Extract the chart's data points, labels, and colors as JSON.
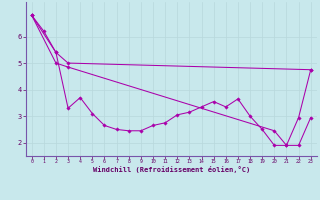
{
  "background_color": "#c8e8ec",
  "grid_color": "#aacccc",
  "line_color": "#aa00aa",
  "xlim": [
    -0.5,
    23.5
  ],
  "ylim": [
    1.5,
    7.3
  ],
  "xtick_labels": [
    "0",
    "1",
    "2",
    "3",
    "4",
    "5",
    "6",
    "7",
    "8",
    "9",
    "10",
    "11",
    "12",
    "13",
    "14",
    "15",
    "16",
    "17",
    "18",
    "19",
    "20",
    "21",
    "22",
    "23"
  ],
  "ytick_labels": [
    "2",
    "3",
    "4",
    "5",
    "6"
  ],
  "ytick_values": [
    2,
    3,
    4,
    5,
    6
  ],
  "line1_x": [
    0,
    1,
    2,
    3,
    4,
    5,
    6,
    7,
    8,
    9,
    10,
    11,
    12,
    13,
    14,
    15,
    16,
    17,
    18,
    19,
    20,
    21,
    22,
    23
  ],
  "line1_y": [
    6.8,
    6.2,
    5.4,
    3.3,
    3.7,
    3.1,
    2.65,
    2.5,
    2.45,
    2.45,
    2.65,
    2.75,
    3.05,
    3.15,
    3.35,
    3.55,
    3.35,
    3.65,
    3.0,
    2.5,
    1.9,
    1.9,
    2.95,
    4.75
  ],
  "line2_x": [
    0,
    2,
    3,
    23
  ],
  "line2_y": [
    6.8,
    5.4,
    5.0,
    4.75
  ],
  "line3_x": [
    0,
    2,
    3,
    20,
    21,
    22,
    23
  ],
  "line3_y": [
    6.8,
    5.0,
    4.85,
    2.45,
    1.9,
    1.9,
    2.95
  ],
  "xlabel": "Windchill (Refroidissement éolien,°C)"
}
